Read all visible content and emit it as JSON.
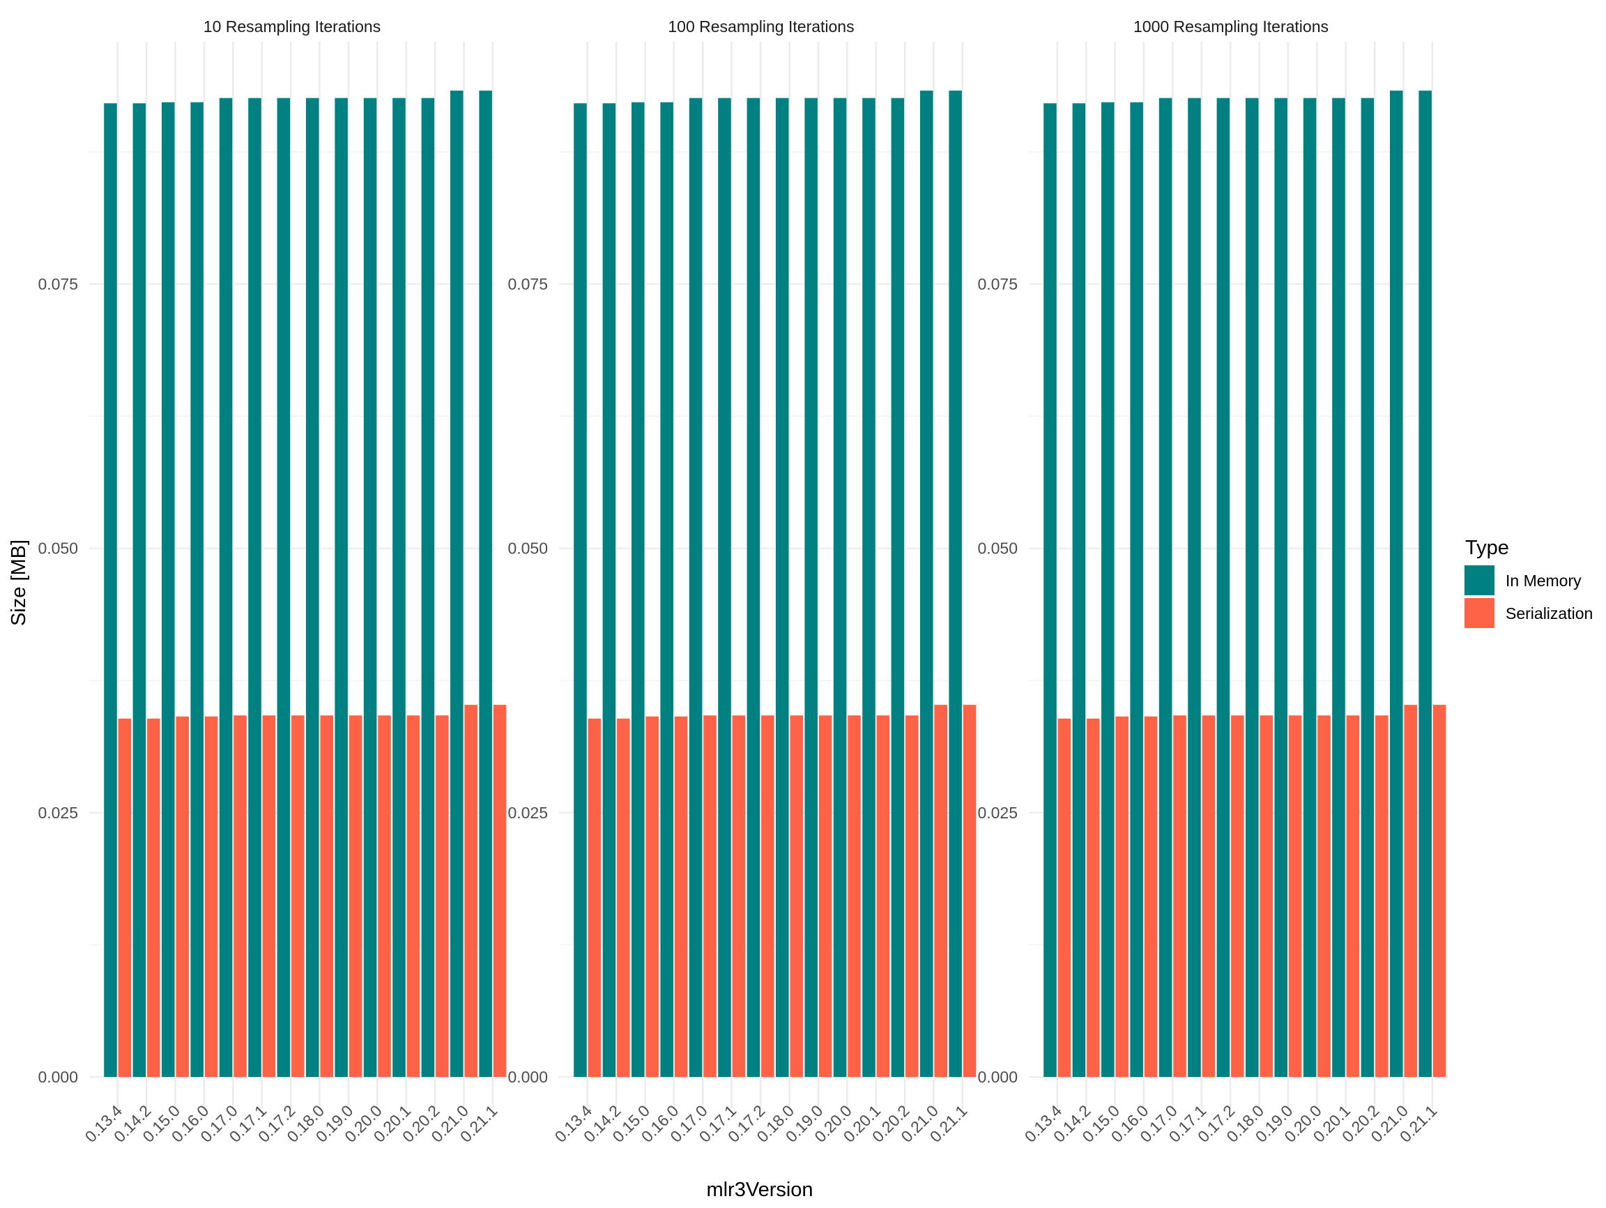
{
  "chart_data": {
    "type": "bar",
    "facet_variable": "Resampling Iterations",
    "facets": [
      {
        "title": "10 Resampling Iterations",
        "series": [
          {
            "name": "In Memory",
            "values": [
              0.0921,
              0.0921,
              0.0922,
              0.0922,
              0.0926,
              0.0926,
              0.0926,
              0.0926,
              0.0926,
              0.0926,
              0.0926,
              0.0926,
              0.0933,
              0.0933
            ]
          },
          {
            "name": "Serialization",
            "values": [
              0.0339,
              0.0339,
              0.0341,
              0.0341,
              0.0342,
              0.0342,
              0.0342,
              0.0342,
              0.0342,
              0.0342,
              0.0342,
              0.0342,
              0.0352,
              0.0352
            ]
          }
        ]
      },
      {
        "title": "100 Resampling Iterations",
        "series": [
          {
            "name": "In Memory",
            "values": [
              0.0921,
              0.0921,
              0.0922,
              0.0922,
              0.0926,
              0.0926,
              0.0926,
              0.0926,
              0.0926,
              0.0926,
              0.0926,
              0.0926,
              0.0933,
              0.0933
            ]
          },
          {
            "name": "Serialization",
            "values": [
              0.0339,
              0.0339,
              0.0341,
              0.0341,
              0.0342,
              0.0342,
              0.0342,
              0.0342,
              0.0342,
              0.0342,
              0.0342,
              0.0342,
              0.0352,
              0.0352
            ]
          }
        ]
      },
      {
        "title": "1000 Resampling Iterations",
        "series": [
          {
            "name": "In Memory",
            "values": [
              0.0921,
              0.0921,
              0.0922,
              0.0922,
              0.0926,
              0.0926,
              0.0926,
              0.0926,
              0.0926,
              0.0926,
              0.0926,
              0.0926,
              0.0933,
              0.0933
            ]
          },
          {
            "name": "Serialization",
            "values": [
              0.0339,
              0.0339,
              0.0341,
              0.0341,
              0.0342,
              0.0342,
              0.0342,
              0.0342,
              0.0342,
              0.0342,
              0.0342,
              0.0342,
              0.0352,
              0.0352
            ]
          }
        ]
      }
    ],
    "categories": [
      "0.13.4",
      "0.14.2",
      "0.15.0",
      "0.16.0",
      "0.17.0",
      "0.17.1",
      "0.17.2",
      "0.18.0",
      "0.19.0",
      "0.20.0",
      "0.20.1",
      "0.20.2",
      "0.21.0",
      "0.21.1"
    ],
    "xlabel": "mlr3Version",
    "ylabel": "Size [MB]",
    "ylim": [
      0,
      0.0933
    ],
    "yticks": [
      0,
      0.025,
      0.05,
      0.075
    ],
    "ytick_labels": [
      "0.000",
      "0.025",
      "0.050",
      "0.075"
    ],
    "grid": true,
    "legend": {
      "title": "Type",
      "position": "right",
      "entries": [
        "In Memory",
        "Serialization"
      ]
    },
    "colors": {
      "In Memory": "#008080",
      "Serialization": "#FF6347"
    }
  }
}
